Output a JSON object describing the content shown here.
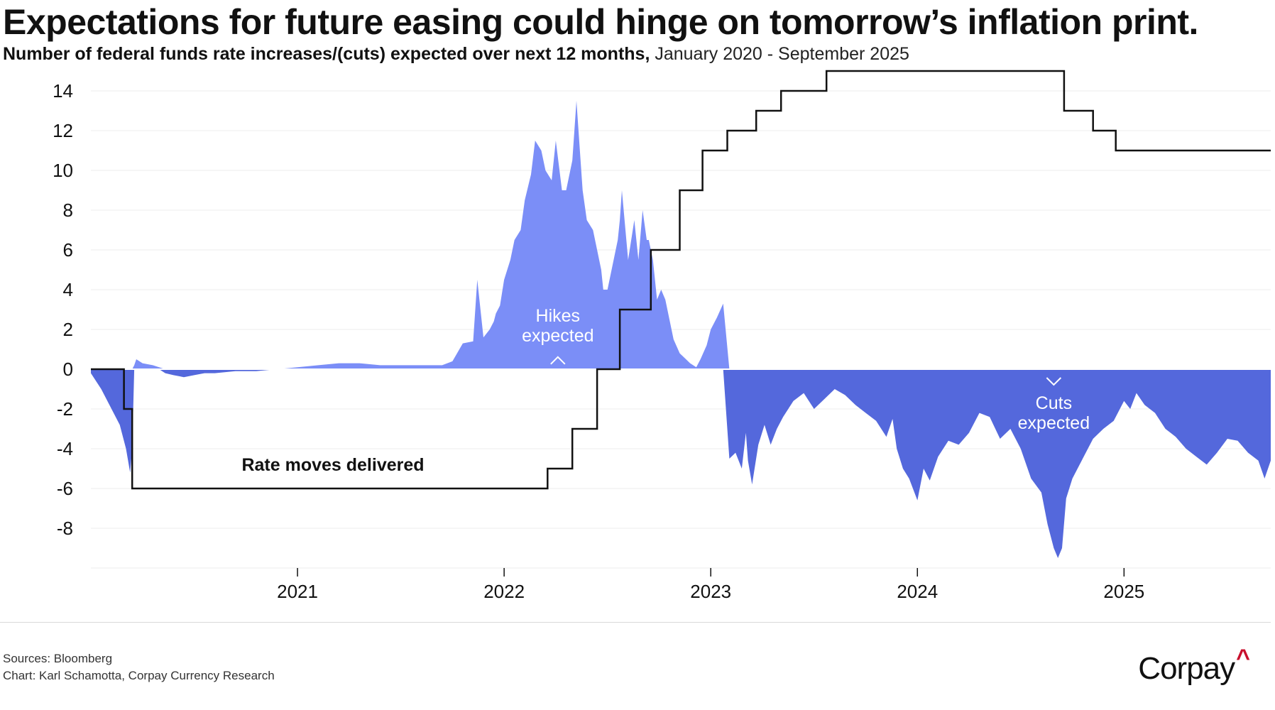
{
  "header": {
    "title": "Expectations for future easing could hinge on tomorrow’s inflation print.",
    "subtitle_bold": "Number of federal funds rate increases/(cuts) expected over next 12 months,",
    "subtitle_range": " January 2020 - September 2025"
  },
  "footer": {
    "sources": "Sources: Bloomberg",
    "credit": "Chart: Karl Schamotta, Corpay Currency Research",
    "logo_text": "Corpay",
    "logo_mark": "^"
  },
  "chart_data": {
    "type": "area",
    "title": "Expectations for future easing could hinge on tomorrow’s inflation print.",
    "subtitle": "Number of federal funds rate increases/(cuts) expected over next 12 months, January 2020 - September 2025",
    "xlabel": "",
    "ylabel": "",
    "xlim": [
      2020.0,
      2025.71
    ],
    "ylim": [
      -10,
      15
    ],
    "x_ticks": [
      2021,
      2022,
      2023,
      2024,
      2025
    ],
    "x_tick_labels": [
      "2021",
      "2022",
      "2023",
      "2024",
      "2025"
    ],
    "y_ticks": [
      -8,
      -6,
      -4,
      -2,
      0,
      2,
      4,
      6,
      8,
      10,
      12,
      14
    ],
    "y_tick_labels": [
      "-8",
      "-6",
      "-4",
      "-2",
      "0",
      "2",
      "4",
      "6",
      "8",
      "10",
      "12",
      "14"
    ],
    "grid": true,
    "colors": {
      "hikes": "#7b8ef7",
      "cuts": "#5468dc",
      "delivered": "#111111"
    },
    "annotations": [
      {
        "text": [
          "Hikes",
          "expected"
        ],
        "x": 2022.26,
        "y": 2.4,
        "arrow": "up"
      },
      {
        "text": [
          "Cuts",
          "expected"
        ],
        "x": 2024.66,
        "y": -2.2,
        "arrow": "down"
      },
      {
        "text": [
          "Rate moves delivered"
        ],
        "x": 2020.73,
        "y": -5.1,
        "arrow": "none"
      }
    ],
    "series": [
      {
        "name": "Expected increases/(cuts)",
        "kind": "area",
        "x": [
          2020.0,
          2020.05,
          2020.1,
          2020.14,
          2020.17,
          2020.19,
          2020.2,
          2020.21,
          2020.22,
          2020.25,
          2020.3,
          2020.33,
          2020.36,
          2020.4,
          2020.45,
          2020.5,
          2020.55,
          2020.6,
          2020.7,
          2020.8,
          2020.9,
          2021.0,
          2021.1,
          2021.2,
          2021.3,
          2021.4,
          2021.5,
          2021.6,
          2021.7,
          2021.75,
          2021.8,
          2021.85,
          2021.87,
          2021.9,
          2021.93,
          2021.95,
          2021.96,
          2021.98,
          2022.0,
          2022.03,
          2022.05,
          2022.08,
          2022.1,
          2022.13,
          2022.15,
          2022.18,
          2022.2,
          2022.23,
          2022.25,
          2022.28,
          2022.3,
          2022.33,
          2022.35,
          2022.38,
          2022.4,
          2022.43,
          2022.45,
          2022.47,
          2022.48,
          2022.5,
          2022.52,
          2022.55,
          2022.56,
          2022.57,
          2022.6,
          2022.63,
          2022.65,
          2022.67,
          2022.69,
          2022.7,
          2022.72,
          2022.74,
          2022.76,
          2022.78,
          2022.8,
          2022.82,
          2022.85,
          2022.88,
          2022.9,
          2022.93,
          2022.95,
          2022.98,
          2023.0,
          2023.03,
          2023.06,
          2023.09,
          2023.12,
          2023.15,
          2023.17,
          2023.18,
          2023.2,
          2023.23,
          2023.26,
          2023.29,
          2023.32,
          2023.35,
          2023.4,
          2023.45,
          2023.5,
          2023.55,
          2023.6,
          2023.65,
          2023.7,
          2023.75,
          2023.8,
          2023.85,
          2023.88,
          2023.9,
          2023.93,
          2023.96,
          2024.0,
          2024.03,
          2024.06,
          2024.1,
          2024.15,
          2024.2,
          2024.25,
          2024.3,
          2024.35,
          2024.4,
          2024.45,
          2024.5,
          2024.55,
          2024.6,
          2024.63,
          2024.66,
          2024.68,
          2024.7,
          2024.72,
          2024.75,
          2024.8,
          2024.85,
          2024.9,
          2024.95,
          2025.0,
          2025.03,
          2025.06,
          2025.1,
          2025.15,
          2025.2,
          2025.25,
          2025.3,
          2025.35,
          2025.4,
          2025.45,
          2025.5,
          2025.55,
          2025.6,
          2025.65,
          2025.68,
          2025.71
        ],
        "y": [
          -0.2,
          -1.0,
          -2.0,
          -2.8,
          -4.0,
          -5.2,
          -4.0,
          0.2,
          0.5,
          0.3,
          0.2,
          0.1,
          -0.2,
          -0.3,
          -0.4,
          -0.3,
          -0.2,
          -0.2,
          -0.1,
          -0.1,
          0.0,
          0.1,
          0.2,
          0.3,
          0.3,
          0.2,
          0.2,
          0.2,
          0.2,
          0.4,
          1.3,
          1.4,
          4.5,
          1.6,
          2.0,
          2.4,
          2.8,
          3.2,
          4.5,
          5.5,
          6.5,
          7.0,
          8.5,
          9.8,
          11.5,
          11.0,
          10.0,
          9.5,
          11.5,
          9.0,
          9.0,
          10.5,
          13.5,
          9.0,
          7.5,
          7.0,
          6.0,
          5.0,
          4.0,
          4.0,
          5.0,
          6.5,
          7.5,
          9.0,
          5.5,
          7.5,
          5.5,
          8.0,
          6.5,
          6.5,
          5.5,
          3.5,
          4.0,
          3.5,
          2.5,
          1.5,
          0.8,
          0.5,
          0.3,
          0.1,
          0.5,
          1.2,
          2.0,
          2.6,
          3.3,
          -4.5,
          -4.2,
          -5.0,
          -3.2,
          -4.6,
          -5.8,
          -3.8,
          -2.8,
          -3.8,
          -3.0,
          -2.4,
          -1.6,
          -1.2,
          -2.0,
          -1.5,
          -1.0,
          -1.3,
          -1.8,
          -2.2,
          -2.6,
          -3.4,
          -2.5,
          -4.0,
          -5.0,
          -5.5,
          -6.6,
          -5.0,
          -5.6,
          -4.4,
          -3.6,
          -3.8,
          -3.2,
          -2.2,
          -2.4,
          -3.5,
          -3.0,
          -4.0,
          -5.5,
          -6.2,
          -7.8,
          -9.0,
          -9.5,
          -9.0,
          -6.5,
          -5.5,
          -4.5,
          -3.5,
          -3.0,
          -2.6,
          -1.6,
          -2.0,
          -1.2,
          -1.8,
          -2.2,
          -3.0,
          -3.4,
          -4.0,
          -4.4,
          -4.8,
          -4.2,
          -3.5,
          -3.6,
          -4.2,
          -4.6,
          -5.5,
          -4.6
        ]
      },
      {
        "name": "Rate moves delivered",
        "kind": "step",
        "x": [
          2020.0,
          2020.16,
          2020.2,
          2022.21,
          2022.33,
          2022.45,
          2022.56,
          2022.71,
          2022.85,
          2022.96,
          2023.08,
          2023.22,
          2023.34,
          2023.56,
          2024.71,
          2024.85,
          2024.96,
          2025.71
        ],
        "y": [
          0,
          -2,
          -6,
          -5,
          -3,
          0,
          3,
          6,
          9,
          11,
          12,
          13,
          14,
          15,
          13,
          12,
          11,
          11
        ]
      }
    ]
  }
}
